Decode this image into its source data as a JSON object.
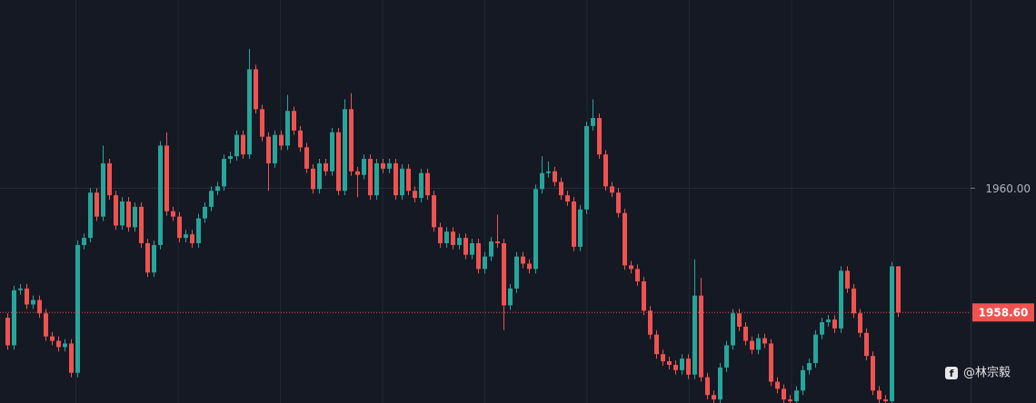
{
  "chart_data": {
    "type": "candlestick",
    "up_color": "#26a69a",
    "down_color": "#ef5350",
    "grid": true,
    "ylim": [
      1957.58,
      1962.12
    ],
    "yticks": [
      {
        "value": 1960,
        "label": "1960.00"
      }
    ],
    "last_price": {
      "value": 1958.6,
      "label": "1958.60"
    },
    "watermark": "@林宗毅",
    "open": [
      1958.54,
      1958.23,
      1958.85,
      1958.87,
      1958.69,
      1958.74,
      1958.59,
      1958.33,
      1958.28,
      1958.21,
      1958.25,
      1957.92,
      1959.36,
      1959.44,
      1959.95,
      1959.68,
      1960.28,
      1959.92,
      1959.58,
      1959.85,
      1959.56,
      1959.79,
      1959.38,
      1959.05,
      1959.36,
      1960.48,
      1959.74,
      1959.68,
      1959.44,
      1959.48,
      1959.38,
      1959.66,
      1959.79,
      1959.97,
      1960.02,
      1960.33,
      1960.36,
      1960.6,
      1960.38,
      1961.34,
      1960.89,
      1960.58,
      1960.28,
      1960.6,
      1960.48,
      1960.87,
      1960.65,
      1960.46,
      1960.22,
      1959.99,
      1960.28,
      1960.19,
      1960.63,
      1959.97,
      1960.89,
      1960.19,
      1960.15,
      1960.33,
      1959.92,
      1960.28,
      1960.22,
      1960.28,
      1959.92,
      1960.22,
      1959.97,
      1959.89,
      1960.17,
      1959.92,
      1959.56,
      1959.38,
      1959.51,
      1959.36,
      1959.44,
      1959.25,
      1959.38,
      1959.09,
      1959.23,
      1959.4,
      1959.38,
      1958.68,
      1958.87,
      1959.23,
      1959.15,
      1959.09,
      1959.99,
      1960.17,
      1960.19,
      1960.07,
      1959.92,
      1959.85,
      1959.34,
      1959.76,
      1960.7,
      1960.79,
      1960.38,
      1960.02,
      1959.95,
      1959.72,
      1959.13,
      1959.09,
      1958.95,
      1958.62,
      1958.35,
      1958.13,
      1958.05,
      1958.01,
      1957.95,
      1958.08,
      1957.9,
      1958.79,
      1957.87,
      1957.67,
      1957.62,
      1957.98,
      1958.23,
      1958.59,
      1958.44,
      1958.28,
      1958.18,
      1958.31,
      1958.25,
      1957.82,
      1957.74,
      1957.62,
      1957.6,
      1957.72,
      1957.95,
      1958.03,
      1958.35,
      1958.49,
      1958.52,
      1958.42,
      1959.07,
      1958.87,
      1958.59,
      1958.37,
      1958.11,
      1957.72,
      1957.62,
      1957.6,
      1959.12
    ],
    "high": [
      1958.59,
      1958.9,
      1958.92,
      1958.92,
      1958.79,
      1958.79,
      1958.64,
      1958.38,
      1958.33,
      1958.3,
      1958.3,
      1959.41,
      1959.49,
      1960.0,
      1960.0,
      1960.48,
      1960.33,
      1959.97,
      1959.9,
      1959.9,
      1959.84,
      1959.84,
      1959.43,
      1959.41,
      1960.53,
      1960.63,
      1959.79,
      1959.73,
      1959.53,
      1959.53,
      1959.71,
      1959.84,
      1960.02,
      1960.07,
      1960.38,
      1960.41,
      1960.65,
      1960.65,
      1961.57,
      1961.39,
      1960.94,
      1960.63,
      1960.65,
      1960.65,
      1961.05,
      1960.92,
      1960.7,
      1960.51,
      1960.27,
      1960.33,
      1960.33,
      1960.68,
      1960.68,
      1961.0,
      1961.07,
      1960.24,
      1960.38,
      1960.38,
      1960.33,
      1960.33,
      1960.33,
      1960.33,
      1960.27,
      1960.27,
      1960.02,
      1960.22,
      1960.22,
      1959.97,
      1959.61,
      1959.56,
      1959.56,
      1959.49,
      1959.49,
      1959.43,
      1959.43,
      1959.28,
      1959.45,
      1959.7,
      1959.43,
      1958.92,
      1959.28,
      1959.28,
      1959.2,
      1960.04,
      1960.36,
      1960.3,
      1960.24,
      1960.12,
      1959.97,
      1959.9,
      1959.81,
      1960.75,
      1961.0,
      1960.84,
      1960.43,
      1960.07,
      1960.0,
      1959.77,
      1959.18,
      1959.14,
      1959.0,
      1958.67,
      1958.4,
      1958.18,
      1958.1,
      1958.06,
      1958.13,
      1958.13,
      1959.2,
      1958.99,
      1957.92,
      1957.72,
      1958.03,
      1958.28,
      1958.64,
      1958.64,
      1958.49,
      1958.33,
      1958.36,
      1958.36,
      1958.3,
      1957.87,
      1957.79,
      1957.67,
      1957.77,
      1958.0,
      1958.08,
      1958.4,
      1958.54,
      1958.57,
      1958.57,
      1959.12,
      1959.12,
      1958.92,
      1958.64,
      1958.42,
      1958.16,
      1957.77,
      1957.67,
      1959.17,
      1959.12
    ],
    "low": [
      1958.18,
      1958.18,
      1958.8,
      1958.64,
      1958.64,
      1958.54,
      1958.28,
      1958.23,
      1958.16,
      1958.16,
      1957.87,
      1957.87,
      1959.31,
      1959.39,
      1959.63,
      1959.63,
      1959.87,
      1959.53,
      1959.53,
      1959.51,
      1959.51,
      1959.33,
      1959.0,
      1959.0,
      1959.31,
      1959.69,
      1959.63,
      1959.39,
      1959.39,
      1959.33,
      1959.33,
      1959.61,
      1959.74,
      1959.92,
      1959.97,
      1960.28,
      1960.31,
      1960.33,
      1960.33,
      1960.84,
      1960.53,
      1959.97,
      1960.23,
      1960.43,
      1960.43,
      1960.6,
      1960.41,
      1960.17,
      1959.94,
      1959.94,
      1960.14,
      1960.14,
      1959.92,
      1959.92,
      1960.14,
      1959.9,
      1960.1,
      1959.87,
      1959.87,
      1960.17,
      1960.17,
      1959.87,
      1959.87,
      1959.92,
      1959.84,
      1959.84,
      1959.87,
      1959.51,
      1959.33,
      1959.33,
      1959.31,
      1959.31,
      1959.2,
      1959.2,
      1959.04,
      1959.04,
      1959.18,
      1959.33,
      1958.4,
      1958.63,
      1958.82,
      1959.1,
      1959.04,
      1959.04,
      1959.94,
      1960.12,
      1960.02,
      1959.87,
      1959.8,
      1959.29,
      1959.29,
      1959.71,
      1960.65,
      1960.33,
      1959.97,
      1959.9,
      1959.67,
      1959.08,
      1959.04,
      1958.9,
      1958.57,
      1958.3,
      1958.08,
      1958.0,
      1957.96,
      1957.9,
      1957.9,
      1957.85,
      1957.85,
      1957.82,
      1957.62,
      1957.58,
      1957.58,
      1957.93,
      1958.18,
      1958.39,
      1958.23,
      1958.13,
      1958.13,
      1958.2,
      1957.77,
      1957.69,
      1957.58,
      1957.58,
      1957.58,
      1957.67,
      1957.9,
      1957.98,
      1958.3,
      1958.44,
      1958.37,
      1958.37,
      1958.82,
      1958.54,
      1958.32,
      1958.06,
      1957.67,
      1957.58,
      1957.58,
      1957.58,
      1958.55
    ],
    "close": [
      1958.23,
      1958.85,
      1958.87,
      1958.69,
      1958.74,
      1958.59,
      1958.33,
      1958.28,
      1958.21,
      1958.25,
      1957.92,
      1959.36,
      1959.44,
      1959.95,
      1959.68,
      1960.28,
      1959.92,
      1959.58,
      1959.85,
      1959.56,
      1959.79,
      1959.38,
      1959.05,
      1959.36,
      1960.48,
      1959.74,
      1959.68,
      1959.44,
      1959.48,
      1959.38,
      1959.66,
      1959.79,
      1959.97,
      1960.02,
      1960.33,
      1960.36,
      1960.6,
      1960.38,
      1961.34,
      1960.89,
      1960.58,
      1960.28,
      1960.6,
      1960.48,
      1960.87,
      1960.65,
      1960.46,
      1960.22,
      1959.99,
      1960.28,
      1960.19,
      1960.63,
      1959.97,
      1960.89,
      1960.19,
      1960.15,
      1960.33,
      1959.92,
      1960.28,
      1960.22,
      1960.28,
      1959.92,
      1960.22,
      1959.97,
      1959.89,
      1960.17,
      1959.92,
      1959.56,
      1959.38,
      1959.51,
      1959.36,
      1959.44,
      1959.25,
      1959.38,
      1959.09,
      1959.23,
      1959.4,
      1959.38,
      1958.68,
      1958.87,
      1959.23,
      1959.15,
      1959.09,
      1959.99,
      1960.17,
      1960.19,
      1960.07,
      1959.92,
      1959.85,
      1959.34,
      1959.76,
      1960.7,
      1960.79,
      1960.38,
      1960.02,
      1959.95,
      1959.72,
      1959.13,
      1959.09,
      1958.95,
      1958.62,
      1958.35,
      1958.13,
      1958.05,
      1958.01,
      1957.95,
      1958.08,
      1957.9,
      1958.79,
      1957.87,
      1957.67,
      1957.62,
      1957.98,
      1958.23,
      1958.59,
      1958.44,
      1958.28,
      1958.18,
      1958.31,
      1958.25,
      1957.82,
      1957.74,
      1957.62,
      1957.6,
      1957.72,
      1957.95,
      1958.03,
      1958.35,
      1958.49,
      1958.52,
      1958.42,
      1959.07,
      1958.87,
      1958.59,
      1958.37,
      1958.11,
      1957.72,
      1957.62,
      1957.6,
      1959.12,
      1958.6
    ]
  }
}
